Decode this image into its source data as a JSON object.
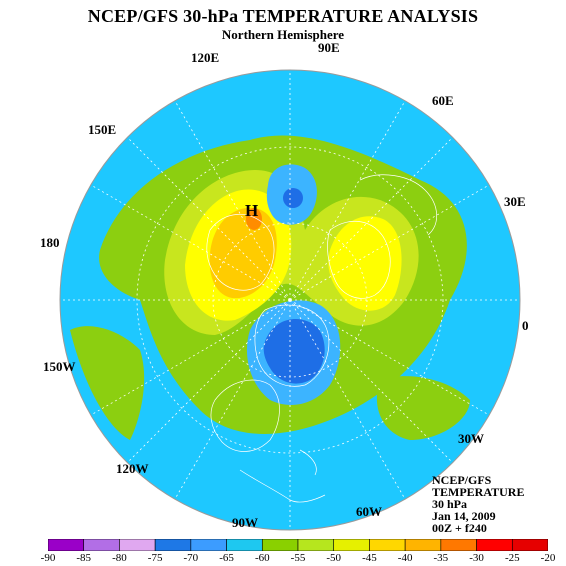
{
  "header": {
    "title": "NCEP/GFS 30-hPa TEMPERATURE ANALYSIS",
    "subtitle": "Northern Hemisphere"
  },
  "longitude_labels": {
    "e90": "90E",
    "e120": "120E",
    "e60": "60E",
    "e150": "150E",
    "e30": "30E",
    "l180": "180",
    "l0": "0",
    "w150": "150W",
    "w30": "30W",
    "w120": "120W",
    "w60": "60W",
    "w90": "90W"
  },
  "high_marker": "H",
  "info": {
    "line1": "NCEP/GFS",
    "line2": "TEMPERATURE",
    "line3": "30 hPa",
    "line4": "Jan 14, 2009",
    "line5": "00Z + f240"
  },
  "legend": {
    "ticks": [
      "-90",
      "-85",
      "-80",
      "-75",
      "-70",
      "-65",
      "-60",
      "-55",
      "-50",
      "-45",
      "-40",
      "-35",
      "-30",
      "-25",
      "-20"
    ],
    "colors": [
      "#9a00c8",
      "#b26ee6",
      "#e0a8f0",
      "#1e78e6",
      "#3c9cff",
      "#1ec8f0",
      "#8ad000",
      "#b6e61e",
      "#e6f000",
      "#ffd700",
      "#ffb400",
      "#ff7800",
      "#ff0000",
      "#e60000",
      "#8a6446"
    ]
  },
  "colors": {
    "cold_core": "#1e6ee6",
    "cool": "#3cb4ff",
    "ocean_band": "#1ec8ff",
    "mid": "#8ccf10",
    "warm_light": "#c8e61e",
    "warm": "#ffff00",
    "warmer": "#ffcc00",
    "hot": "#ff8c00"
  }
}
